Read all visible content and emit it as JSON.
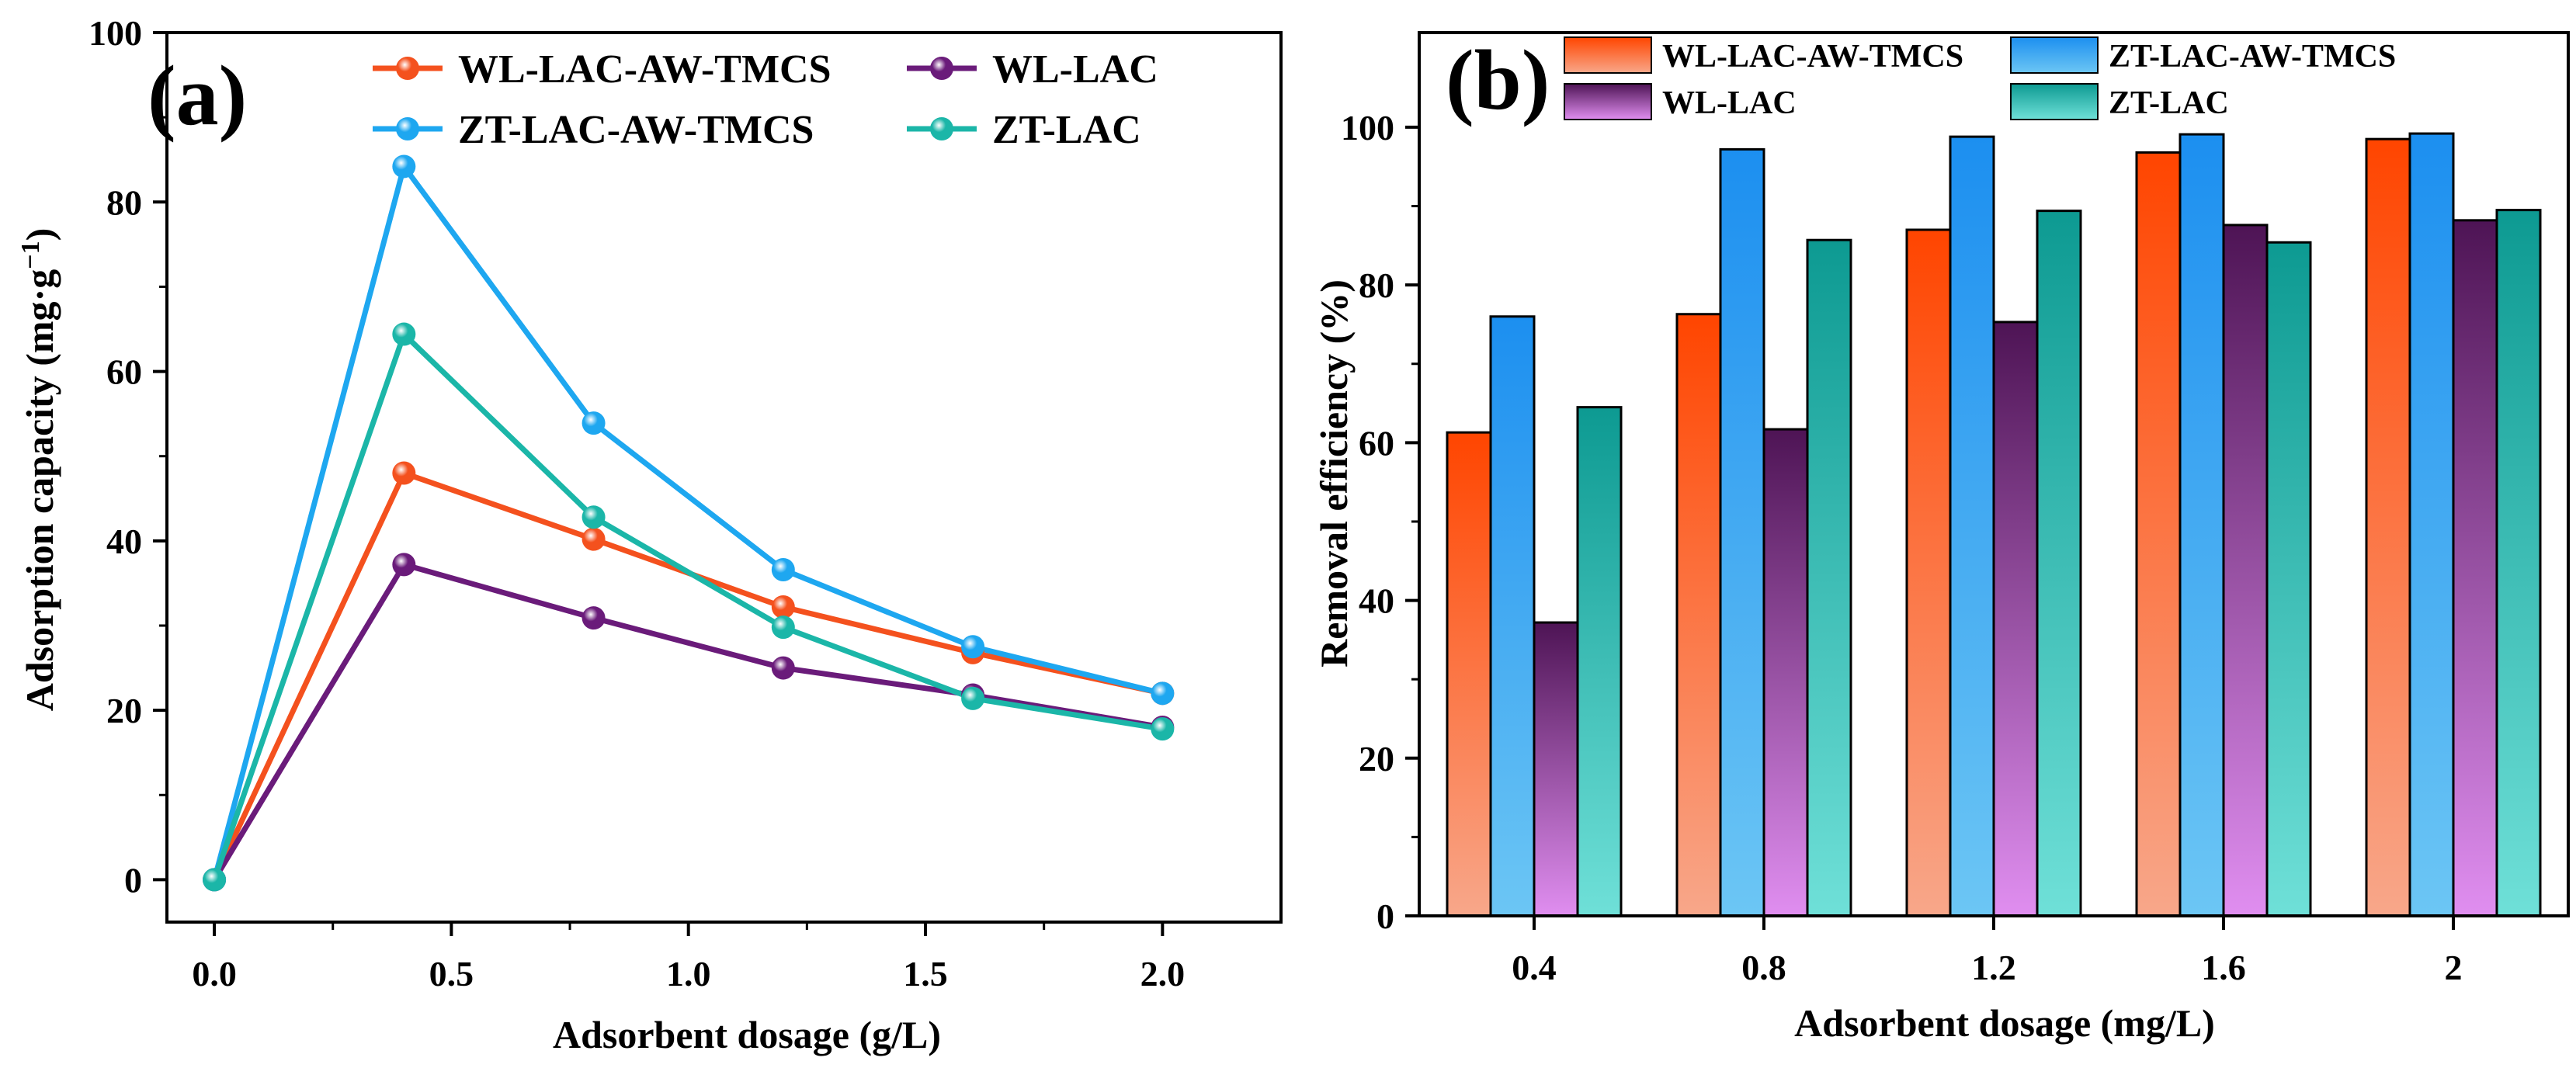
{
  "chart_data": [
    {
      "type": "line",
      "panel_label": "(a)",
      "xlabel": "Adsorbent dosage (g/L)",
      "ylabel_main": "Adsorption capacity (mg·g",
      "ylabel_sup": "−1",
      "ylabel_close": ")",
      "xlim": [
        -0.1,
        2.25
      ],
      "ylim": [
        -5,
        100
      ],
      "xticks": [
        "0.0",
        "0.5",
        "1.0",
        "1.5",
        "2.0"
      ],
      "xtick_values": [
        0,
        0.5,
        1.0,
        1.5,
        2.0
      ],
      "yticks": [
        "0",
        "20",
        "40",
        "60",
        "80",
        "100"
      ],
      "ytick_values": [
        0,
        20,
        40,
        60,
        80,
        100
      ],
      "legend_position": "top-right",
      "x": [
        0,
        0.4,
        0.8,
        1.2,
        1.6,
        2.0
      ],
      "series": [
        {
          "name": "WL-LAC-AW-TMCS",
          "color": "#f4511e",
          "values": [
            0,
            48,
            40.2,
            32.2,
            26.8,
            22
          ]
        },
        {
          "name": "WL-LAC",
          "color": "#6a1b7a",
          "values": [
            0,
            37.2,
            30.9,
            25,
            21.8,
            18
          ]
        },
        {
          "name": "ZT-LAC-AW-TMCS",
          "color": "#1ea7f0",
          "values": [
            0,
            84.2,
            53.9,
            36.6,
            27.5,
            22
          ]
        },
        {
          "name": "ZT-LAC",
          "color": "#1bb6a8",
          "values": [
            0,
            64.4,
            42.8,
            29.8,
            21.4,
            17.8
          ]
        }
      ]
    },
    {
      "type": "bar",
      "panel_label": "(b)",
      "xlabel": "Adsorbent dosage (mg/L)",
      "ylabel": "Removal efficiency (%)",
      "ylim": [
        0,
        100
      ],
      "yticks": [
        "0",
        "20",
        "40",
        "60",
        "80",
        "100"
      ],
      "ytick_values": [
        0,
        20,
        40,
        60,
        80,
        100
      ],
      "categories": [
        "0.4",
        "0.8",
        "1.2",
        "1.6",
        "2"
      ],
      "legend_position": "top",
      "series": [
        {
          "name": "WL-LAC-AW-TMCS",
          "color_top": "#ff4500",
          "color_bottom": "#f8a78a",
          "values": [
            61.3,
            76.3,
            87,
            96.8,
            98.5
          ]
        },
        {
          "name": "ZT-LAC-AW-TMCS",
          "color_top": "#1c8ff0",
          "color_bottom": "#6cc6f4",
          "values": [
            76,
            97.2,
            98.8,
            99.1,
            99.2
          ]
        },
        {
          "name": "WL-LAC",
          "color_top": "#4e1455",
          "color_bottom": "#e08ef0",
          "values": [
            37.2,
            61.7,
            75.3,
            87.6,
            88.2
          ]
        },
        {
          "name": "ZT-LAC",
          "color_top": "#0d9a92",
          "color_bottom": "#6fe0d8",
          "values": [
            64.5,
            85.7,
            89.4,
            85.4,
            89.5
          ]
        }
      ]
    }
  ]
}
